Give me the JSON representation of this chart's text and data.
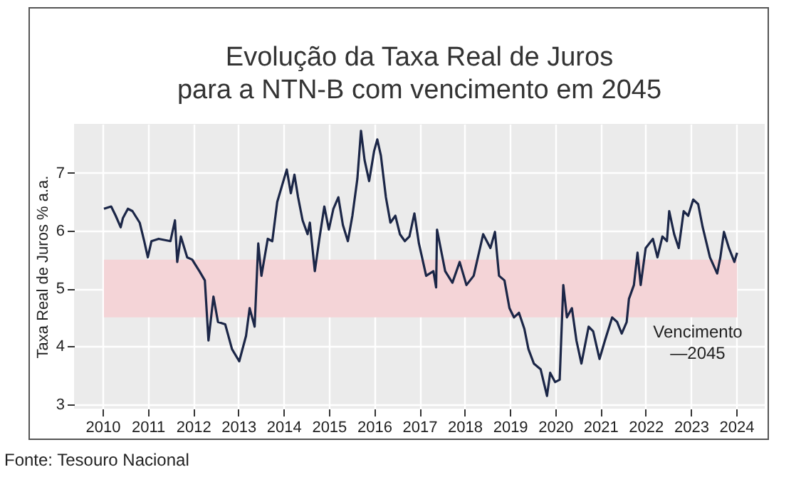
{
  "chart_data": {
    "type": "line",
    "title": "Evolução da Taxa Real de Juros\npara a NTN-B com vencimento em 2045",
    "ylabel": "Taxa Real de Juros % a.a.",
    "xlim": [
      2009.37,
      2024.63
    ],
    "xticks": [
      2010,
      2011,
      2012,
      2013,
      2014,
      2015,
      2016,
      2017,
      2018,
      2019,
      2020,
      2021,
      2022,
      2023,
      2024
    ],
    "ylim": [
      2.92,
      7.85
    ],
    "yticks": [
      3,
      4,
      5,
      6,
      7
    ],
    "grid": true,
    "legend": false,
    "marker": "none",
    "line_style": "solid",
    "series": [
      {
        "color": "#1b2647",
        "x": [
          2010.03,
          2010.19,
          2010.29,
          2010.4,
          2010.45,
          2010.56,
          2010.66,
          2010.82,
          2010.92,
          2011.0,
          2011.08,
          2011.24,
          2011.5,
          2011.6,
          2011.65,
          2011.73,
          2011.87,
          2011.98,
          2012.14,
          2012.26,
          2012.34,
          2012.45,
          2012.55,
          2012.71,
          2012.86,
          2013.02,
          2013.17,
          2013.25,
          2013.36,
          2013.44,
          2013.51,
          2013.65,
          2013.75,
          2013.86,
          2014.07,
          2014.16,
          2014.24,
          2014.32,
          2014.42,
          2014.53,
          2014.58,
          2014.69,
          2014.79,
          2014.9,
          2015.0,
          2015.1,
          2015.21,
          2015.31,
          2015.42,
          2015.52,
          2015.63,
          2015.71,
          2015.79,
          2015.89,
          2016.0,
          2016.07,
          2016.15,
          2016.26,
          2016.36,
          2016.47,
          2016.57,
          2016.68,
          2016.78,
          2016.89,
          2016.99,
          2017.15,
          2017.31,
          2017.37,
          2017.39,
          2017.47,
          2017.57,
          2017.73,
          2017.89,
          2018.04,
          2018.2,
          2018.41,
          2018.57,
          2018.67,
          2018.76,
          2018.88,
          2018.99,
          2019.09,
          2019.2,
          2019.32,
          2019.41,
          2019.53,
          2019.68,
          2019.82,
          2019.89,
          2020.0,
          2020.1,
          2020.18,
          2020.26,
          2020.37,
          2020.47,
          2020.58,
          2020.74,
          2020.84,
          2020.98,
          2021.1,
          2021.26,
          2021.37,
          2021.47,
          2021.58,
          2021.63,
          2021.74,
          2021.82,
          2021.89,
          2022.0,
          2022.16,
          2022.26,
          2022.37,
          2022.47,
          2022.52,
          2022.63,
          2022.73,
          2022.84,
          2022.94,
          2023.05,
          2023.16,
          2023.26,
          2023.42,
          2023.58,
          2023.65,
          2023.73,
          2023.84,
          2023.96,
          2024.02
        ],
        "values": [
          6.38,
          6.42,
          6.26,
          6.06,
          6.22,
          6.38,
          6.34,
          6.14,
          5.82,
          5.54,
          5.82,
          5.86,
          5.82,
          6.18,
          5.46,
          5.9,
          5.54,
          5.5,
          5.3,
          5.14,
          4.1,
          4.86,
          4.42,
          4.38,
          3.95,
          3.74,
          4.18,
          4.66,
          4.34,
          5.78,
          5.22,
          5.86,
          5.82,
          6.5,
          7.06,
          6.65,
          6.97,
          6.58,
          6.18,
          5.94,
          6.14,
          5.3,
          5.86,
          6.42,
          6.02,
          6.38,
          6.58,
          6.1,
          5.82,
          6.26,
          6.9,
          7.73,
          7.22,
          6.86,
          7.38,
          7.58,
          7.3,
          6.58,
          6.14,
          6.26,
          5.94,
          5.82,
          5.9,
          6.3,
          5.78,
          5.22,
          5.3,
          5.02,
          6.02,
          5.7,
          5.3,
          5.1,
          5.46,
          5.06,
          5.22,
          5.94,
          5.7,
          5.98,
          5.22,
          5.14,
          4.66,
          4.5,
          4.58,
          4.3,
          3.95,
          3.7,
          3.6,
          3.14,
          3.54,
          3.38,
          3.42,
          5.06,
          4.5,
          4.66,
          4.1,
          3.7,
          4.34,
          4.26,
          3.78,
          4.1,
          4.5,
          4.42,
          4.22,
          4.42,
          4.82,
          5.06,
          5.62,
          5.06,
          5.7,
          5.86,
          5.54,
          5.9,
          5.82,
          6.34,
          5.94,
          5.7,
          6.34,
          6.26,
          6.54,
          6.46,
          6.06,
          5.54,
          5.26,
          5.54,
          5.98,
          5.7,
          5.46,
          5.62
        ]
      }
    ],
    "bands": [
      {
        "axis": "y",
        "from": 4.5,
        "to": 5.5,
        "color": "#f4d4d7"
      }
    ],
    "annotations": [
      "Vencimento\n—2045",
      "Fonte: Tesouro Nacional"
    ]
  }
}
